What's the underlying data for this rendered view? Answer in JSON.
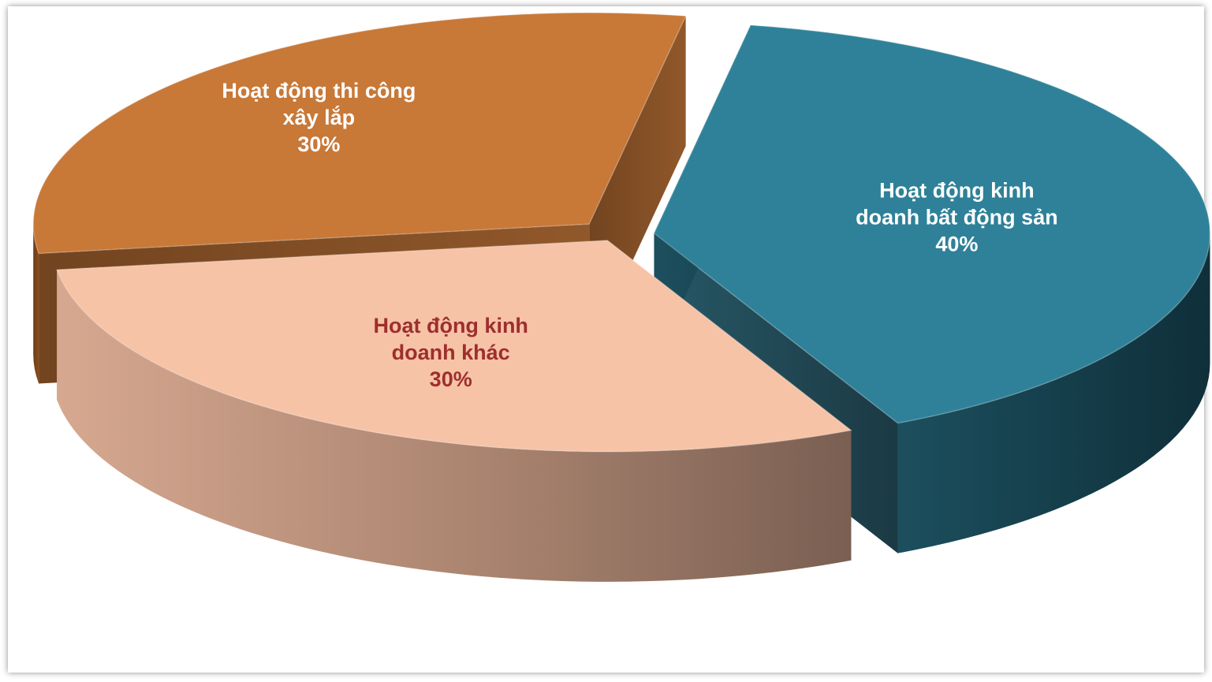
{
  "chart_data": {
    "type": "pie",
    "style": "3d-exploded",
    "title": "",
    "slices": [
      {
        "name": "Hoạt động kinh doanh bất động sản",
        "label_lines": [
          "Hoạt động kinh",
          "doanh bất động sản",
          "40%"
        ],
        "value": 40,
        "color": "#2e8198",
        "label_color": "#ffffff"
      },
      {
        "name": "Hoạt động kinh doanh khác",
        "label_lines": [
          "Hoạt động kinh",
          "doanh khác",
          "30%"
        ],
        "value": 30,
        "color": "#f6c3a7",
        "label_color": "#9e2e2e"
      },
      {
        "name": "Hoạt động thi công xây lắp",
        "label_lines": [
          "Hoạt động thi công",
          "xây lắp",
          "30%"
        ],
        "value": 30,
        "color": "#c87837",
        "label_color": "#ffffff"
      }
    ]
  }
}
